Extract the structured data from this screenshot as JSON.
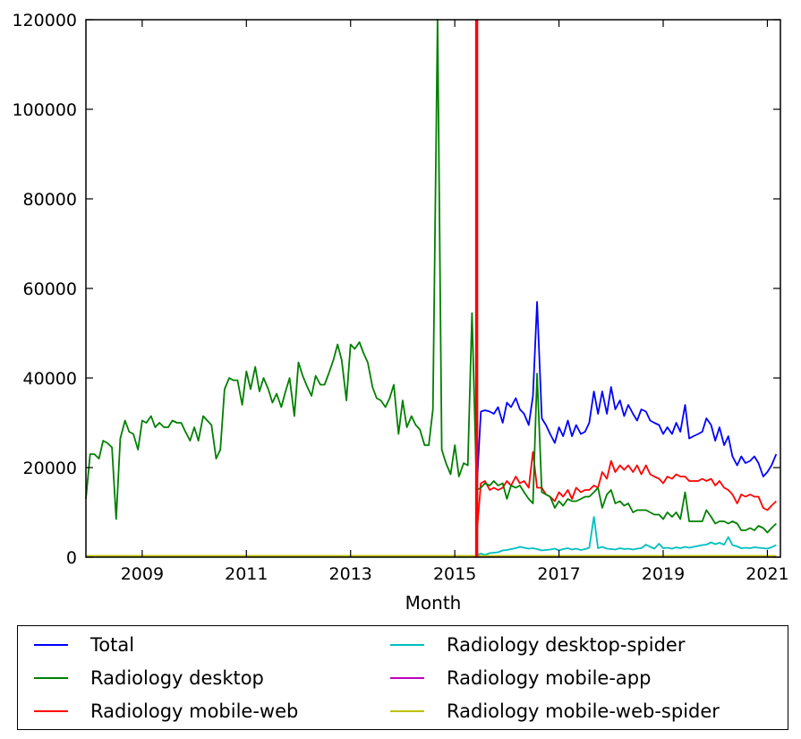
{
  "chart_data": {
    "type": "line",
    "xlabel": "Month",
    "ylabel": "",
    "title": "",
    "xlim": [
      2007.92,
      2021.25
    ],
    "ylim": [
      0,
      120000
    ],
    "x_ticks": [
      2009,
      2011,
      2013,
      2015,
      2017,
      2019,
      2021
    ],
    "y_ticks": [
      0,
      20000,
      40000,
      60000,
      80000,
      100000,
      120000
    ],
    "grid": false,
    "legend_position": "bottom, outside plot, two columns",
    "vertical_marker": {
      "x": 2015.42,
      "color": "#ff0000"
    },
    "series": [
      {
        "name": "Total",
        "color": "#0000ff",
        "x": [
          2015.42,
          2015.5,
          2015.58,
          2015.67,
          2015.75,
          2015.83,
          2015.92,
          2016.0,
          2016.08,
          2016.17,
          2016.25,
          2016.33,
          2016.42,
          2016.5,
          2016.58,
          2016.67,
          2016.75,
          2016.83,
          2016.92,
          2017.0,
          2017.08,
          2017.17,
          2017.25,
          2017.33,
          2017.42,
          2017.5,
          2017.58,
          2017.67,
          2017.75,
          2017.83,
          2017.92,
          2018.0,
          2018.08,
          2018.17,
          2018.25,
          2018.33,
          2018.42,
          2018.5,
          2018.58,
          2018.67,
          2018.75,
          2018.83,
          2018.92,
          2019.0,
          2019.08,
          2019.17,
          2019.25,
          2019.33,
          2019.42,
          2019.5,
          2019.58,
          2019.67,
          2019.75,
          2019.83,
          2019.92,
          2020.0,
          2020.08,
          2020.17,
          2020.25,
          2020.33,
          2020.42,
          2020.5,
          2020.58,
          2020.67,
          2020.75,
          2020.83,
          2020.92,
          2021.0,
          2021.08,
          2021.17
        ],
        "y": [
          15000,
          32500,
          32800,
          32500,
          32000,
          33500,
          30000,
          34500,
          33500,
          35500,
          33000,
          32000,
          29500,
          36000,
          57000,
          31000,
          29500,
          27500,
          25500,
          29000,
          27000,
          30500,
          27000,
          29500,
          27500,
          28000,
          30000,
          37000,
          32000,
          37000,
          32000,
          38000,
          33000,
          35000,
          31500,
          34000,
          32000,
          30500,
          33000,
          32500,
          30500,
          30000,
          29500,
          27500,
          29000,
          27500,
          30000,
          28000,
          34000,
          26500,
          27000,
          27500,
          28000,
          31000,
          29500,
          26000,
          29000,
          25000,
          27000,
          22500,
          20500,
          22500,
          21000,
          21500,
          22500,
          21000,
          18000,
          19000,
          20500,
          23000
        ]
      },
      {
        "name": "Radiology desktop",
        "color": "#008000",
        "x": [
          2007.92,
          2008.0,
          2008.08,
          2008.17,
          2008.25,
          2008.33,
          2008.42,
          2008.5,
          2008.58,
          2008.67,
          2008.75,
          2008.83,
          2008.92,
          2009.0,
          2009.08,
          2009.17,
          2009.25,
          2009.33,
          2009.42,
          2009.5,
          2009.58,
          2009.67,
          2009.75,
          2009.83,
          2009.92,
          2010.0,
          2010.08,
          2010.17,
          2010.25,
          2010.33,
          2010.42,
          2010.5,
          2010.58,
          2010.67,
          2010.75,
          2010.83,
          2010.92,
          2011.0,
          2011.08,
          2011.17,
          2011.25,
          2011.33,
          2011.42,
          2011.5,
          2011.58,
          2011.67,
          2011.75,
          2011.83,
          2011.92,
          2012.0,
          2012.08,
          2012.17,
          2012.25,
          2012.33,
          2012.42,
          2012.5,
          2012.58,
          2012.67,
          2012.75,
          2012.83,
          2012.92,
          2013.0,
          2013.08,
          2013.17,
          2013.25,
          2013.33,
          2013.42,
          2013.5,
          2013.58,
          2013.67,
          2013.75,
          2013.83,
          2013.92,
          2014.0,
          2014.08,
          2014.17,
          2014.25,
          2014.33,
          2014.42,
          2014.5,
          2014.58,
          2014.67,
          2014.75,
          2014.83,
          2014.92,
          2015.0,
          2015.08,
          2015.17,
          2015.25,
          2015.33,
          2015.42,
          2015.5,
          2015.58,
          2015.67,
          2015.75,
          2015.83,
          2015.92,
          2016.0,
          2016.08,
          2016.17,
          2016.25,
          2016.33,
          2016.42,
          2016.5,
          2016.58,
          2016.67,
          2016.75,
          2016.83,
          2016.92,
          2017.0,
          2017.08,
          2017.17,
          2017.25,
          2017.33,
          2017.42,
          2017.5,
          2017.58,
          2017.67,
          2017.75,
          2017.83,
          2017.92,
          2018.0,
          2018.08,
          2018.17,
          2018.25,
          2018.33,
          2018.42,
          2018.5,
          2018.58,
          2018.67,
          2018.75,
          2018.83,
          2018.92,
          2019.0,
          2019.08,
          2019.17,
          2019.25,
          2019.33,
          2019.42,
          2019.5,
          2019.58,
          2019.67,
          2019.75,
          2019.83,
          2019.92,
          2020.0,
          2020.08,
          2020.17,
          2020.25,
          2020.33,
          2020.42,
          2020.5,
          2020.58,
          2020.67,
          2020.75,
          2020.83,
          2020.92,
          2021.0,
          2021.08,
          2021.17
        ],
        "y": [
          13000,
          23000,
          23000,
          22000,
          26000,
          25500,
          24500,
          8500,
          26500,
          30500,
          28000,
          27500,
          24000,
          30500,
          30000,
          31500,
          29000,
          30000,
          29000,
          29000,
          30500,
          30000,
          30000,
          28000,
          26000,
          29000,
          26000,
          31500,
          30500,
          29500,
          22000,
          24000,
          37500,
          40000,
          39500,
          39500,
          34000,
          41500,
          37500,
          42500,
          37000,
          40000,
          37500,
          34500,
          36500,
          33500,
          37000,
          40000,
          31500,
          43500,
          40500,
          38000,
          36000,
          40500,
          38500,
          38500,
          41000,
          44000,
          47500,
          44000,
          35000,
          47500,
          46500,
          48000,
          45500,
          43500,
          38000,
          35500,
          35000,
          33500,
          35500,
          38500,
          27500,
          35000,
          29000,
          31500,
          29500,
          28500,
          25000,
          25000,
          33000,
          120000,
          24000,
          21000,
          18500,
          25000,
          18000,
          21000,
          20500,
          54500,
          15000,
          15500,
          16500,
          16000,
          17000,
          16000,
          16500,
          13000,
          16000,
          15500,
          16000,
          14500,
          13000,
          12000,
          41000,
          14500,
          14000,
          13500,
          11000,
          12500,
          11500,
          13000,
          12500,
          12500,
          13000,
          13500,
          13500,
          14500,
          15500,
          11000,
          14000,
          15000,
          12000,
          12500,
          11500,
          12000,
          10000,
          10500,
          10500,
          10500,
          10000,
          9500,
          9500,
          8500,
          10000,
          9000,
          10000,
          8500,
          14500,
          8000,
          8000,
          8000,
          8000,
          10500,
          9000,
          7500,
          8000,
          8000,
          7500,
          8000,
          7500,
          6000,
          6000,
          6500,
          6000,
          7000,
          6500,
          5500,
          6500,
          7500
        ]
      },
      {
        "name": "Radiology mobile-web",
        "color": "#ff0000",
        "x": [
          2015.42,
          2015.5,
          2015.58,
          2015.67,
          2015.75,
          2015.83,
          2015.92,
          2016.0,
          2016.08,
          2016.17,
          2016.25,
          2016.33,
          2016.42,
          2016.5,
          2016.58,
          2016.67,
          2016.75,
          2016.83,
          2016.92,
          2017.0,
          2017.08,
          2017.17,
          2017.25,
          2017.33,
          2017.42,
          2017.5,
          2017.58,
          2017.67,
          2017.75,
          2017.83,
          2017.92,
          2018.0,
          2018.08,
          2018.17,
          2018.25,
          2018.33,
          2018.42,
          2018.5,
          2018.58,
          2018.67,
          2018.75,
          2018.83,
          2018.92,
          2019.0,
          2019.08,
          2019.17,
          2019.25,
          2019.33,
          2019.42,
          2019.5,
          2019.58,
          2019.67,
          2019.75,
          2019.83,
          2019.92,
          2020.0,
          2020.08,
          2020.17,
          2020.25,
          2020.33,
          2020.42,
          2020.5,
          2020.58,
          2020.67,
          2020.75,
          2020.83,
          2020.92,
          2021.0,
          2021.08,
          2021.17
        ],
        "y": [
          5000,
          16500,
          17000,
          15000,
          15500,
          15000,
          15500,
          17000,
          16000,
          18000,
          16500,
          17000,
          15500,
          23500,
          15500,
          15500,
          14000,
          13500,
          12500,
          14500,
          13500,
          15000,
          13000,
          15500,
          14500,
          15000,
          15000,
          16000,
          15500,
          19000,
          17500,
          21500,
          19000,
          20500,
          19500,
          20500,
          19000,
          20500,
          18500,
          20500,
          18500,
          18000,
          17500,
          16500,
          18000,
          17500,
          18500,
          18000,
          18000,
          17000,
          17000,
          17000,
          17500,
          17000,
          17500,
          16000,
          17000,
          15500,
          15000,
          14000,
          12000,
          14000,
          13500,
          14000,
          13500,
          13500,
          11000,
          10500,
          11500,
          12500
        ]
      },
      {
        "name": "Radiology desktop-spider",
        "color": "#00bfbf",
        "x": [
          2015.42,
          2015.5,
          2015.58,
          2015.67,
          2015.75,
          2015.83,
          2015.92,
          2016.0,
          2016.08,
          2016.17,
          2016.25,
          2016.33,
          2016.42,
          2016.5,
          2016.58,
          2016.67,
          2016.75,
          2016.83,
          2016.92,
          2017.0,
          2017.08,
          2017.17,
          2017.25,
          2017.33,
          2017.42,
          2017.5,
          2017.58,
          2017.67,
          2017.75,
          2017.83,
          2017.92,
          2018.0,
          2018.08,
          2018.17,
          2018.25,
          2018.33,
          2018.42,
          2018.5,
          2018.58,
          2018.67,
          2018.75,
          2018.83,
          2018.92,
          2019.0,
          2019.08,
          2019.17,
          2019.25,
          2019.33,
          2019.42,
          2019.5,
          2019.58,
          2019.67,
          2019.75,
          2019.83,
          2019.92,
          2020.0,
          2020.08,
          2020.17,
          2020.25,
          2020.33,
          2020.42,
          2020.5,
          2020.58,
          2020.67,
          2020.75,
          2020.83,
          2020.92,
          2021.0,
          2021.08,
          2021.17
        ],
        "y": [
          400,
          800,
          500,
          900,
          1000,
          1100,
          1500,
          1600,
          1800,
          2000,
          2300,
          2100,
          1900,
          2000,
          1800,
          1500,
          1600,
          1700,
          1900,
          1500,
          1800,
          2000,
          1700,
          1900,
          1600,
          1800,
          2100,
          9000,
          2000,
          2300,
          1900,
          1800,
          1700,
          2000,
          1800,
          1900,
          1700,
          1900,
          2000,
          2800,
          2300,
          1900,
          3000,
          2000,
          2100,
          1900,
          2200,
          2000,
          2300,
          2100,
          2300,
          2500,
          2700,
          2800,
          3300,
          2900,
          3200,
          2800,
          4500,
          2700,
          2400,
          2000,
          2100,
          2000,
          2200,
          2100,
          2000,
          1900,
          2200,
          2700
        ]
      },
      {
        "name": "Radiology mobile-app",
        "color": "#bf00bf",
        "x": [
          2015.42,
          2021.17
        ],
        "y": [
          200,
          200
        ]
      },
      {
        "name": "Radiology mobile-web-spider",
        "color": "#bfbf00",
        "x": [
          2007.92,
          2021.17
        ],
        "y": [
          300,
          300
        ]
      }
    ]
  }
}
